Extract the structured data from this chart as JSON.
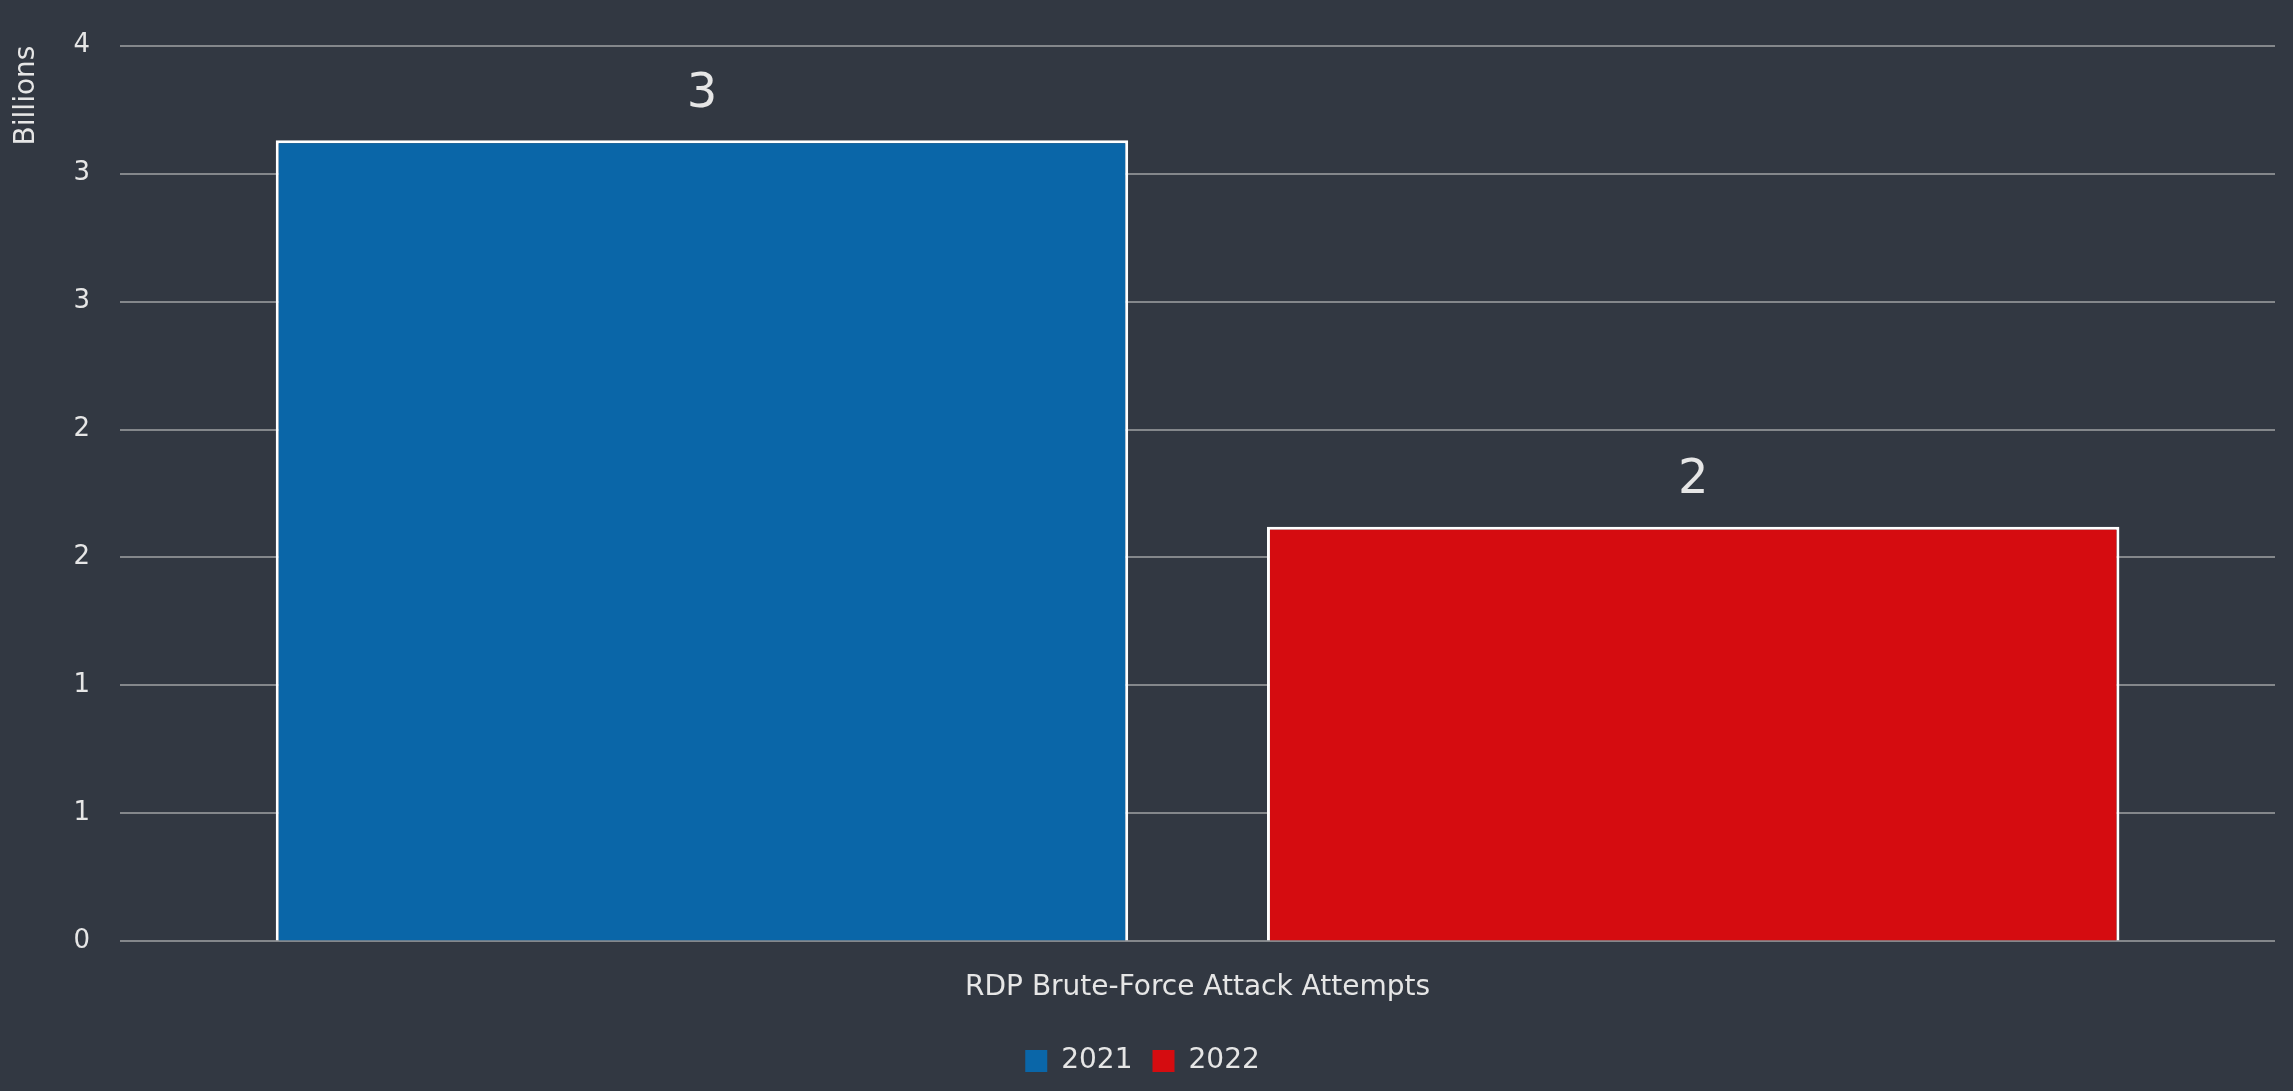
{
  "chart_data": {
    "type": "bar",
    "ylabel": "Billions",
    "categories": [
      "RDP Brute-Force Attack Attempts"
    ],
    "series": [
      {
        "name": "2021",
        "color": "#0a66a8",
        "values": [
          3.13
        ],
        "value_labels": [
          "3"
        ]
      },
      {
        "name": "2022",
        "color": "#d50c10",
        "values": [
          1.62
        ],
        "value_labels": [
          "2"
        ]
      }
    ],
    "ylim": [
      0,
      3.5
    ],
    "yticks": [
      0,
      {
        "value": 0.5,
        "label": "1"
      },
      1,
      {
        "value": 1.5,
        "label": "2"
      },
      2,
      {
        "value": 2.5,
        "label": "3"
      },
      3,
      {
        "value": 3.5,
        "label": "4"
      }
    ],
    "grid": "y",
    "legend": "bottom"
  }
}
